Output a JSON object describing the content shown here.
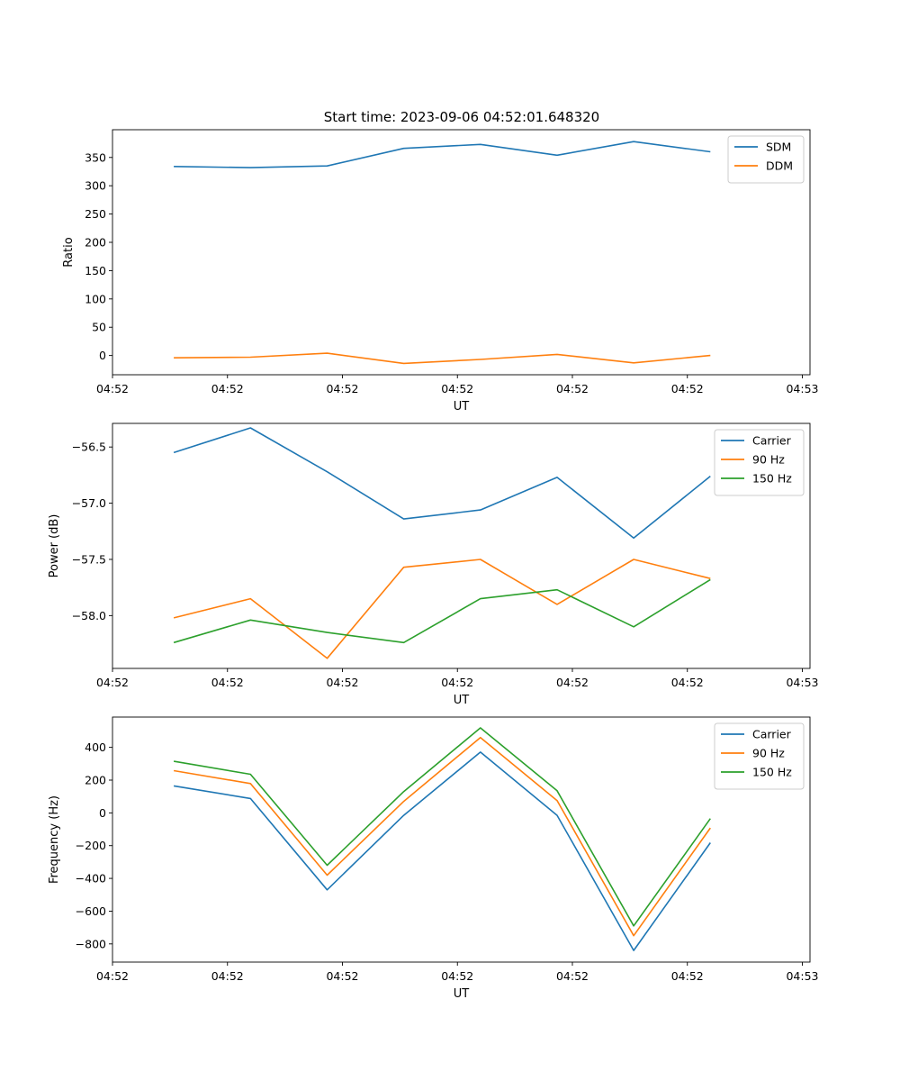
{
  "figure_title": "Start time: 2023-09-06 04:52:01.648320",
  "chart_data": [
    {
      "type": "line",
      "title": "Start time: 2023-09-06 04:52:01.648320",
      "xlabel": "UT",
      "ylabel": "Ratio",
      "x": [
        1,
        2,
        3,
        4,
        5,
        6,
        7,
        8
      ],
      "xlim": [
        0.2,
        9.3
      ],
      "xticks": [
        0.2,
        1.7,
        3.2,
        4.7,
        6.2,
        7.7,
        9.2
      ],
      "xtick_labels": [
        "04:52",
        "04:52",
        "04:52",
        "04:52",
        "04:52",
        "04:52",
        "04:53"
      ],
      "ylim": [
        -34,
        399
      ],
      "yticks": [
        0,
        50,
        100,
        150,
        200,
        250,
        300,
        350
      ],
      "ytick_labels": [
        "0",
        "50",
        "100",
        "150",
        "200",
        "250",
        "300",
        "350"
      ],
      "legend_position": "top-right",
      "series": [
        {
          "name": "SDM",
          "color": "#1f77b4",
          "values": [
            334,
            332,
            335,
            366,
            373,
            354,
            378,
            360
          ]
        },
        {
          "name": "DDM",
          "color": "#ff7f0e",
          "values": [
            -4,
            -3,
            4,
            -14,
            -7,
            2,
            -13,
            0
          ]
        }
      ]
    },
    {
      "type": "line",
      "xlabel": "UT",
      "ylabel": "Power (dB)",
      "x": [
        1,
        2,
        3,
        4,
        5,
        6,
        7,
        8
      ],
      "xlim": [
        0.2,
        9.3
      ],
      "xticks": [
        0.2,
        1.7,
        3.2,
        4.7,
        6.2,
        7.7,
        9.2
      ],
      "xtick_labels": [
        "04:52",
        "04:52",
        "04:52",
        "04:52",
        "04:52",
        "04:52",
        "04:53"
      ],
      "ylim": [
        -58.47,
        -56.29
      ],
      "yticks": [
        -58.0,
        -57.5,
        -57.0,
        -56.5
      ],
      "ytick_labels": [
        "−58.0",
        "−57.5",
        "−57.0",
        "−56.5"
      ],
      "legend_position": "top-right",
      "series": [
        {
          "name": "Carrier",
          "color": "#1f77b4",
          "values": [
            -56.55,
            -56.33,
            -56.72,
            -57.14,
            -57.06,
            -56.77,
            -57.31,
            -56.76
          ]
        },
        {
          "name": "90 Hz",
          "color": "#ff7f0e",
          "values": [
            -58.02,
            -57.85,
            -58.38,
            -57.57,
            -57.5,
            -57.9,
            -57.5,
            -57.67
          ]
        },
        {
          "name": "150 Hz",
          "color": "#2ca02c",
          "values": [
            -58.24,
            -58.04,
            -58.15,
            -58.24,
            -57.85,
            -57.77,
            -58.1,
            -57.68
          ]
        }
      ]
    },
    {
      "type": "line",
      "xlabel": "UT",
      "ylabel": "Frequency (Hz)",
      "x": [
        1,
        2,
        3,
        4,
        5,
        6,
        7,
        8
      ],
      "xlim": [
        0.2,
        9.3
      ],
      "xticks": [
        0.2,
        1.7,
        3.2,
        4.7,
        6.2,
        7.7,
        9.2
      ],
      "xtick_labels": [
        "04:52",
        "04:52",
        "04:52",
        "04:52",
        "04:52",
        "04:52",
        "04:53"
      ],
      "ylim": [
        -911,
        585
      ],
      "yticks": [
        -800,
        -600,
        -400,
        -200,
        0,
        200,
        400
      ],
      "ytick_labels": [
        "−800",
        "−600",
        "−400",
        "−200",
        "0",
        "200",
        "400"
      ],
      "legend_position": "top-right",
      "series": [
        {
          "name": "Carrier",
          "color": "#1f77b4",
          "values": [
            165,
            88,
            -470,
            -15,
            371,
            -15,
            -840,
            -182
          ]
        },
        {
          "name": "90 Hz",
          "color": "#ff7f0e",
          "values": [
            258,
            179,
            -380,
            70,
            460,
            75,
            -750,
            -92
          ]
        },
        {
          "name": "150 Hz",
          "color": "#2ca02c",
          "values": [
            315,
            236,
            -320,
            130,
            519,
            135,
            -690,
            -35
          ]
        }
      ]
    }
  ]
}
